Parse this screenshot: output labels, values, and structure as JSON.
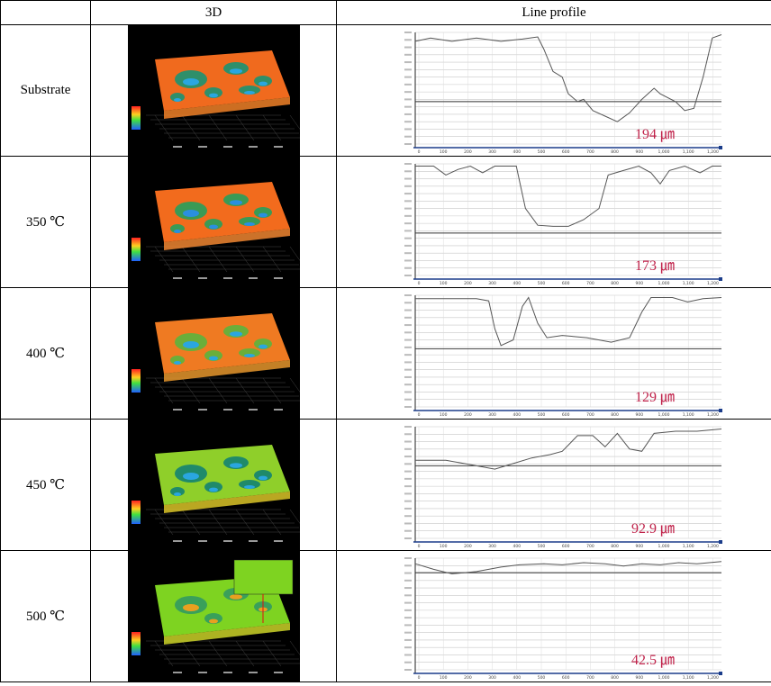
{
  "header": {
    "col1": "",
    "col2": "3D",
    "col3": "Line  profile"
  },
  "rows": [
    {
      "label": "Substrate",
      "depth_label": "194  ㎛"
    },
    {
      "label": "350  ℃",
      "depth_label": "173  ㎛"
    },
    {
      "label": "400  ℃",
      "depth_label": "129  ㎛"
    },
    {
      "label": "450  ℃",
      "depth_label": "92.9  ㎛"
    },
    {
      "label": "500  ℃",
      "depth_label": "42.5  ㎛"
    }
  ],
  "x_ticks": [
    "0",
    "100",
    "200",
    "300",
    "400",
    "500",
    "600",
    "700",
    "800",
    "900",
    "1,000",
    "1,100",
    "1,200"
  ],
  "colors": {
    "annotation": "#c0224a",
    "surface_hot": "#f26b1d",
    "surface_green": "#7ed321",
    "surface_blue": "#2aa6e0"
  }
}
